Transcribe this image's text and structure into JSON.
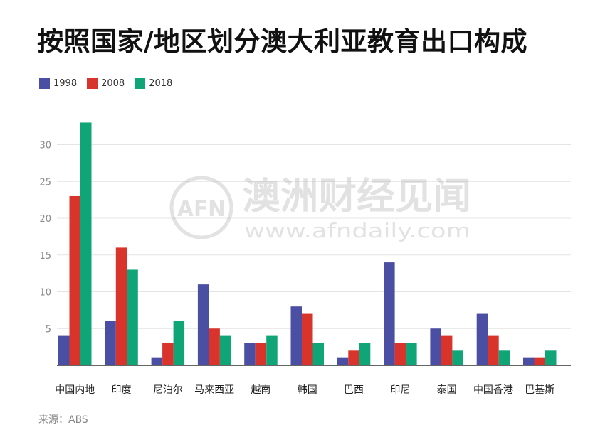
{
  "title": "按照国家/地区划分澳大利亚教育出口构成",
  "source": "来源：ABS",
  "watermark": {
    "logo_text": "AFN",
    "name": "澳洲财经见闻",
    "url": "www.afndaily.com"
  },
  "colors": {
    "1998": "#4a4fa3",
    "2008": "#d9342b",
    "2018": "#0fa577"
  },
  "chart_data": {
    "type": "bar",
    "categories": [
      "中国内地",
      "印度",
      "尼泊尔",
      "马来西亚",
      "越南",
      "韩国",
      "巴西",
      "印尼",
      "泰国",
      "中国香港",
      "巴基斯"
    ],
    "series": [
      {
        "name": "1998",
        "values": [
          4,
          6,
          1,
          11,
          3,
          8,
          1,
          14,
          5,
          7,
          1
        ]
      },
      {
        "name": "2008",
        "values": [
          23,
          16,
          3,
          5,
          3,
          7,
          2,
          3,
          4,
          4,
          1
        ]
      },
      {
        "name": "2018",
        "values": [
          33,
          13,
          6,
          4,
          4,
          3,
          3,
          3,
          2,
          2,
          2
        ]
      }
    ],
    "yticks": [
      5,
      10,
      15,
      20,
      25,
      30
    ],
    "ylim": [
      0,
      35
    ],
    "grid": true,
    "legend_position": "top-left"
  }
}
